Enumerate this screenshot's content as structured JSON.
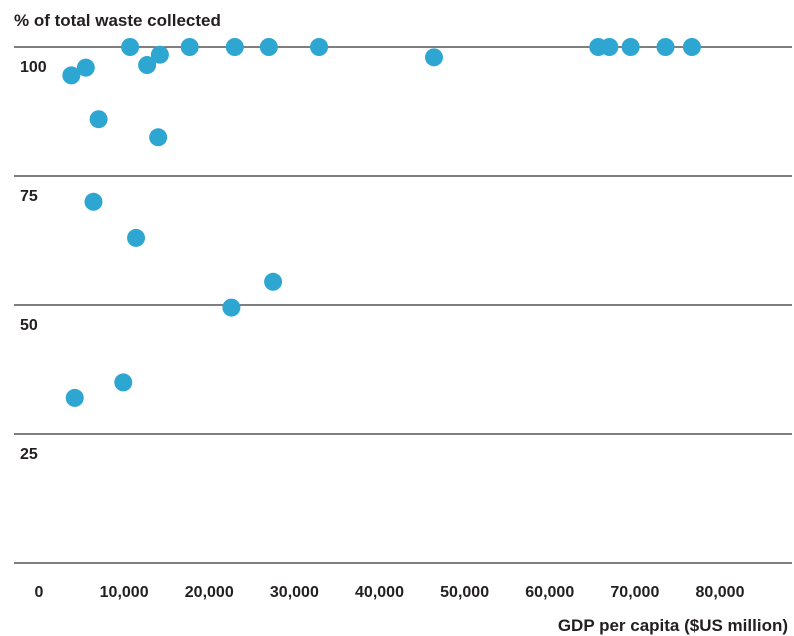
{
  "chart_data": {
    "type": "scatter",
    "title": "",
    "ylabel": "% of total waste collected",
    "xlabel": "GDP per capita ($US million)",
    "xlim": [
      0,
      85000
    ],
    "ylim": [
      0,
      100
    ],
    "x_ticks": [
      0,
      10000,
      20000,
      30000,
      40000,
      50000,
      60000,
      70000,
      80000
    ],
    "x_tick_labels": [
      "0",
      "10,000",
      "20,000",
      "30,000",
      "40,000",
      "50,000",
      "60,000",
      "70,000",
      "80,000"
    ],
    "y_ticks": [
      25,
      50,
      75,
      100
    ],
    "y_tick_labels": [
      "25",
      "50",
      "75",
      "100"
    ],
    "grid": "horizontal",
    "colors": {
      "point": "#2ea6d2",
      "gridline": "#555555",
      "text": "#231f20"
    },
    "points": [
      {
        "x": 3800,
        "y": 94.5
      },
      {
        "x": 5500,
        "y": 96
      },
      {
        "x": 7000,
        "y": 86
      },
      {
        "x": 6400,
        "y": 70
      },
      {
        "x": 11400,
        "y": 63
      },
      {
        "x": 4200,
        "y": 32
      },
      {
        "x": 9900,
        "y": 35
      },
      {
        "x": 10700,
        "y": 100
      },
      {
        "x": 12700,
        "y": 96.5
      },
      {
        "x": 14200,
        "y": 98.5
      },
      {
        "x": 14000,
        "y": 82.5
      },
      {
        "x": 17700,
        "y": 100
      },
      {
        "x": 22600,
        "y": 49.5
      },
      {
        "x": 23000,
        "y": 100
      },
      {
        "x": 27000,
        "y": 100
      },
      {
        "x": 27500,
        "y": 54.5
      },
      {
        "x": 32900,
        "y": 100
      },
      {
        "x": 46400,
        "y": 98
      },
      {
        "x": 65700,
        "y": 100
      },
      {
        "x": 67000,
        "y": 100
      },
      {
        "x": 69500,
        "y": 100
      },
      {
        "x": 73600,
        "y": 100
      },
      {
        "x": 76700,
        "y": 100
      }
    ]
  }
}
